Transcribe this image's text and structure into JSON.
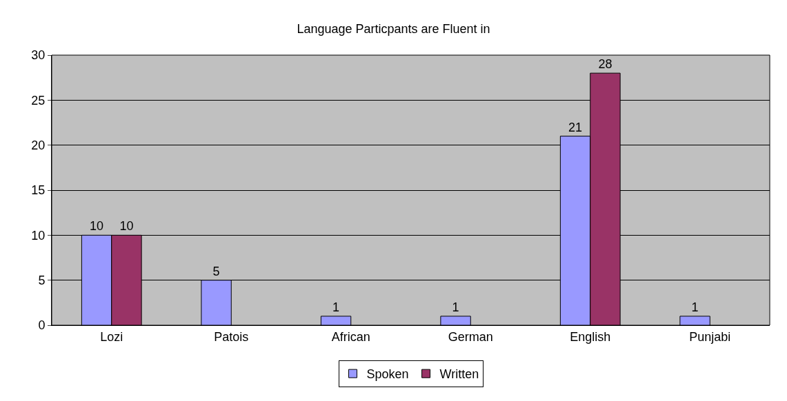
{
  "chart_data": {
    "type": "bar",
    "title": "Language Particpants are Fluent in",
    "categories": [
      "Lozi",
      "Patois",
      "African",
      "German",
      "English",
      "Punjabi"
    ],
    "series": [
      {
        "name": "Spoken",
        "color": "#9999ff",
        "values": [
          10,
          5,
          1,
          1,
          21,
          1
        ]
      },
      {
        "name": "Written",
        "color": "#993366",
        "values": [
          10,
          null,
          null,
          null,
          28,
          null
        ]
      }
    ],
    "ylim": [
      0,
      30
    ],
    "yticks": [
      0,
      5,
      10,
      15,
      20,
      25,
      30
    ],
    "grid": "y",
    "legend": "bottom",
    "data_labels": true
  }
}
